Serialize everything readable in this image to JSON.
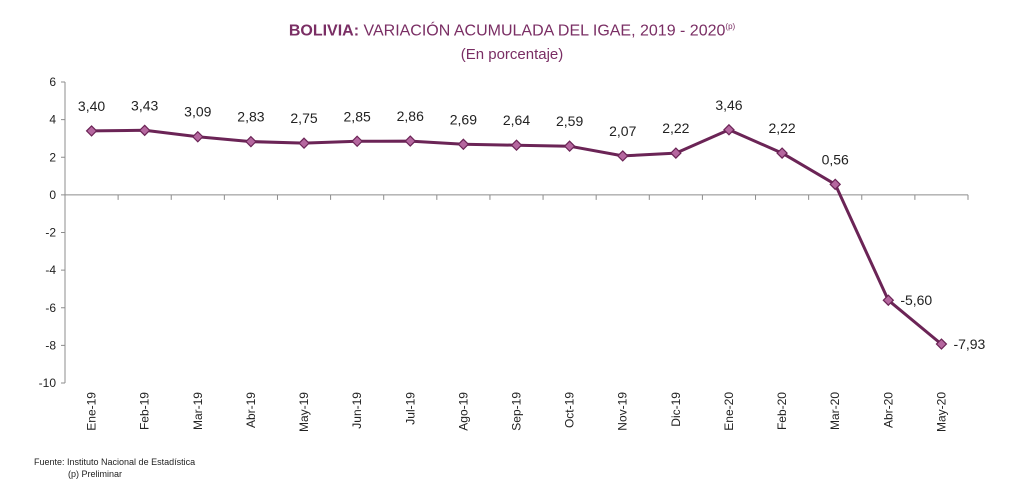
{
  "chart_data": {
    "type": "line",
    "title_bold": "BOLIVIA:",
    "title_rest": " VARIACIÓN ACUMULADA DEL IGAE, 2019 - 2020",
    "title_sup": "(p)",
    "subtitle": "(En porcentaje)",
    "categories": [
      "Ene-19",
      "Feb-19",
      "Mar-19",
      "Abr-19",
      "May-19",
      "Jun-19",
      "Jul-19",
      "Ago-19",
      "Sep-19",
      "Oct-19",
      "Nov-19",
      "Dic-19",
      "Ene-20",
      "Feb-20",
      "Mar-20",
      "Abr-20",
      "May-20"
    ],
    "values": [
      3.4,
      3.43,
      3.09,
      2.83,
      2.75,
      2.85,
      2.86,
      2.69,
      2.64,
      2.59,
      2.07,
      2.22,
      3.46,
      2.22,
      0.56,
      -5.6,
      -7.93
    ],
    "value_labels": [
      "3,40",
      "3,43",
      "3,09",
      "2,83",
      "2,75",
      "2,85",
      "2,86",
      "2,69",
      "2,64",
      "2,59",
      "2,07",
      "2,22",
      "3,46",
      "2,22",
      "0,56",
      "-5,60",
      "-7,93"
    ],
    "ylim": [
      -10,
      6
    ],
    "yticks": [
      6,
      4,
      2,
      0,
      -2,
      -4,
      -6,
      -8,
      -10
    ],
    "grid": false,
    "line_color": "#6b2456",
    "marker_color": "#b5679f"
  },
  "footer": {
    "source": "Fuente: Instituto Nacional de Estadística",
    "note": "(p) Preliminar"
  }
}
